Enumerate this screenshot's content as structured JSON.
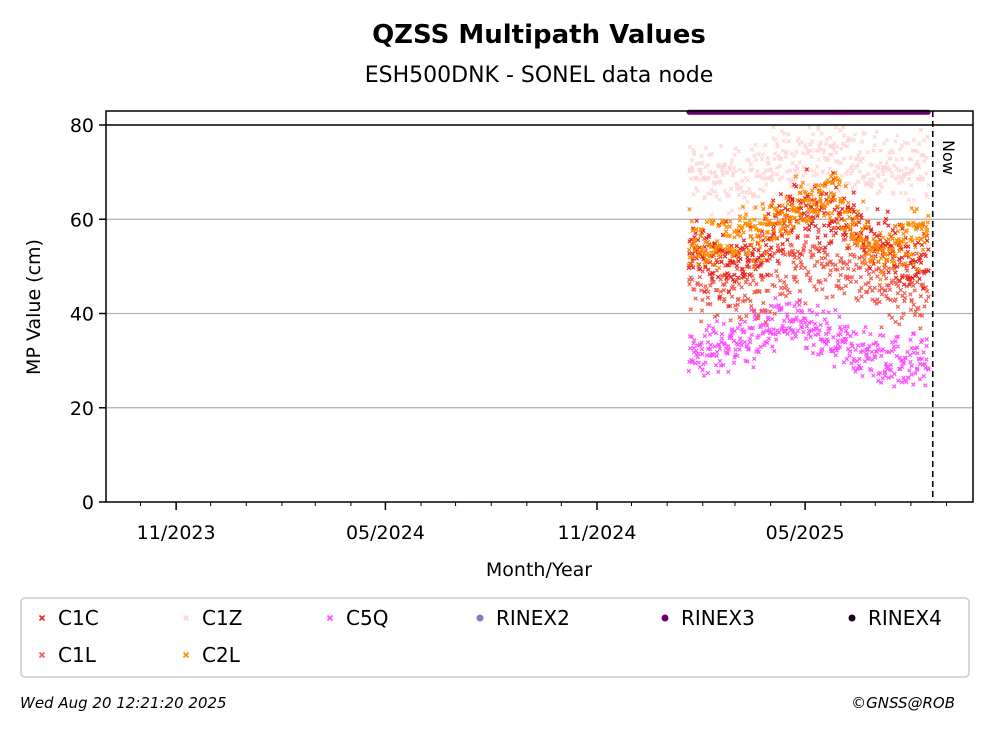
{
  "chart_data": {
    "type": "scatter",
    "title": "QZSS Multipath Values",
    "subtitle": "ESH500DNK - SONEL data node",
    "xlabel": "Month/Year",
    "ylabel": "MP Value (cm)",
    "xlim": [
      "2023-09-01",
      "2025-09-24"
    ],
    "ylim": [
      0,
      80
    ],
    "yticks": [
      0,
      20,
      40,
      60,
      80
    ],
    "xticks": [
      {
        "date": "2023-11-01",
        "label": "11/2023"
      },
      {
        "date": "2024-05-01",
        "label": "05/2024"
      },
      {
        "date": "2024-11-01",
        "label": "11/2024"
      },
      {
        "date": "2025-05-01",
        "label": "05/2025"
      }
    ],
    "grid": "horizontal",
    "now_line": {
      "date": "2025-08-20",
      "label": "Now"
    },
    "date_range": [
      "2025-01-20",
      "2025-08-16"
    ],
    "rinex_bar": {
      "series": "RINEX3",
      "value": 81,
      "start": "2025-01-20",
      "end": "2025-08-16"
    },
    "series": [
      {
        "name": "C1C",
        "marker": "x",
        "color": "#e8251f",
        "approx_mean": [
          55,
          50,
          60,
          62,
          54,
          52
        ],
        "spread": 5
      },
      {
        "name": "C1L",
        "marker": "x",
        "color": "#f25c4f",
        "approx_mean": [
          48,
          46,
          50,
          52,
          46,
          44
        ],
        "spread": 6
      },
      {
        "name": "C1Z",
        "marker": "x",
        "color": "#ffd6d6",
        "approx_mean": [
          70,
          68,
          72,
          74,
          70,
          72
        ],
        "spread": 5
      },
      {
        "name": "C2L",
        "marker": "x",
        "color": "#ff8c00",
        "approx_mean": [
          55,
          56,
          60,
          65,
          52,
          58
        ],
        "spread": 4
      },
      {
        "name": "C5Q",
        "marker": "x",
        "color": "#ff4dff",
        "approx_mean": [
          31,
          34,
          38,
          34,
          30,
          30
        ],
        "spread": 4
      },
      {
        "name": "RINEX2",
        "marker": "o",
        "color": "#8878c3"
      },
      {
        "name": "RINEX3",
        "marker": "o",
        "color": "#6a006a"
      },
      {
        "name": "RINEX4",
        "marker": "o",
        "color": "#1a001a"
      }
    ],
    "legend": {
      "placement": "bottom",
      "columns": [
        [
          "C1C",
          "C1L"
        ],
        [
          "C1Z",
          "C2L"
        ],
        [
          "C5Q"
        ],
        [
          "RINEX2"
        ],
        [
          "RINEX3"
        ],
        [
          "RINEX4"
        ]
      ]
    }
  },
  "footer": {
    "timestamp": "Wed Aug 20 12:21:20 2025",
    "credit": "©GNSS@ROB"
  }
}
